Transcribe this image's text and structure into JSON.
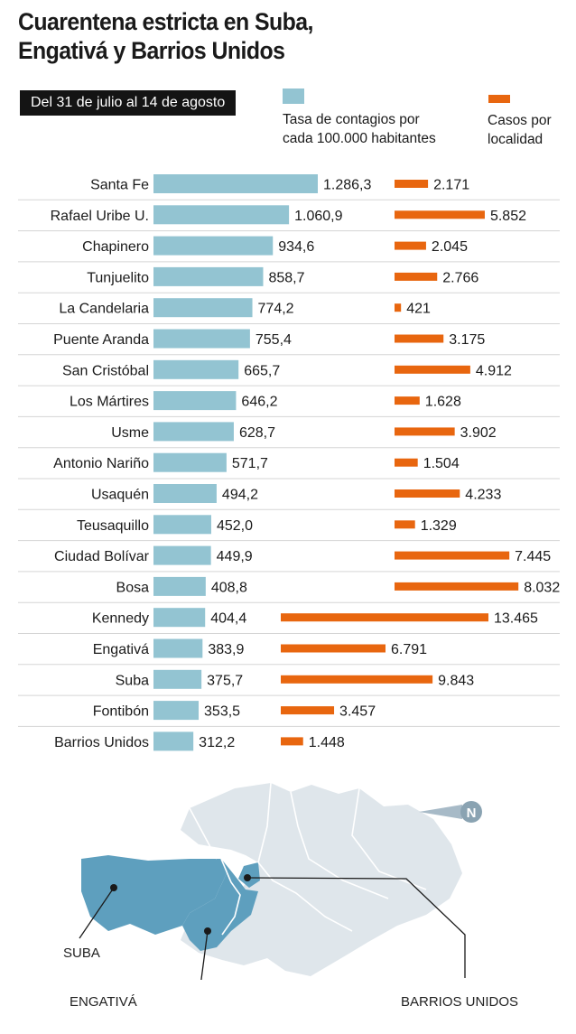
{
  "title_line1": "Cuarentena estricta en Suba,",
  "title_line2": "Engativá y Barrios Unidos",
  "period": "Del 31 de julio al 14 de agosto",
  "colors": {
    "rate": "#93c4d2",
    "cases": "#e8660f",
    "map_highlight": "#5e9fbe",
    "map_base": "#dfe6eb"
  },
  "legend": {
    "rate": "Tasa de contagios por\ncada 100.000 habitantes",
    "cases": "Casos por\nlocalidad"
  },
  "chart_data": {
    "type": "bar",
    "categories": [
      "Santa Fe",
      "Rafael Uribe U.",
      "Chapinero",
      "Tunjuelito",
      "La Candelaria",
      "Puente Aranda",
      "San Cristóbal",
      "Los Mártires",
      "Usme",
      "Antonio Nariño",
      "Usaquén",
      "Teusaquillo",
      "Ciudad Bolívar",
      "Bosa",
      "Kennedy",
      "Engativá",
      "Suba",
      "Fontibón",
      "Barrios Unidos"
    ],
    "series": [
      {
        "name": "Tasa de contagios por cada 100.000 habitantes",
        "values": [
          1286.3,
          1060.9,
          934.6,
          858.7,
          774.2,
          755.4,
          665.7,
          646.2,
          628.7,
          571.7,
          494.2,
          452.0,
          449.9,
          408.8,
          404.4,
          383.9,
          375.7,
          353.5,
          312.2
        ],
        "labels": [
          "1.286,3",
          "1.060,9",
          "934,6",
          "858,7",
          "774,2",
          "755,4",
          "665,7",
          "646,2",
          "628,7",
          "571,7",
          "494,2",
          "452,0",
          "449,9",
          "408,8",
          "404,4",
          "383,9",
          "375,7",
          "353,5",
          "312,2"
        ]
      },
      {
        "name": "Casos por localidad",
        "values": [
          2171,
          5852,
          2045,
          2766,
          421,
          3175,
          4912,
          1628,
          3902,
          1504,
          4233,
          1329,
          7445,
          8032,
          13465,
          6791,
          9843,
          3457,
          1448
        ],
        "labels": [
          "2.171",
          "5.852",
          "2.045",
          "2.766",
          "421",
          "3.175",
          "4.912",
          "1.628",
          "3.902",
          "1.504",
          "4.233",
          "1.329",
          "7.445",
          "8.032",
          "13.465",
          "6.791",
          "9.843",
          "3.457",
          "1.448"
        ]
      }
    ],
    "highlighted_categories": [
      "Kennedy",
      "Engativá",
      "Suba",
      "Fontibón",
      "Barrios Unidos"
    ]
  },
  "map": {
    "labels": {
      "suba": "SUBA",
      "engativa": "ENGATIVÁ",
      "barrios_unidos": "BARRIOS UNIDOS",
      "north": "N"
    },
    "icons": {
      "north": "north-arrow-icon"
    }
  }
}
